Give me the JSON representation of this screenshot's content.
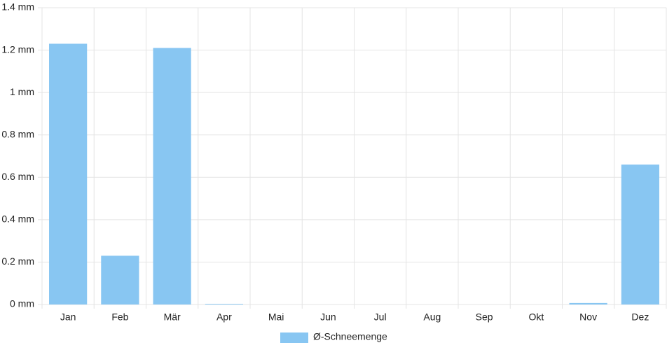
{
  "chart_data": {
    "type": "bar",
    "categories": [
      "Jan",
      "Feb",
      "Mär",
      "Apr",
      "Mai",
      "Jun",
      "Jul",
      "Aug",
      "Sep",
      "Okt",
      "Nov",
      "Dez"
    ],
    "series": [
      {
        "name": "Ø-Schneemenge",
        "color": "#88c6f2",
        "values": [
          1.23,
          0.23,
          1.21,
          0.003,
          0,
          0,
          0,
          0,
          0,
          0,
          0.007,
          0.66
        ]
      }
    ],
    "ylim": [
      0,
      1.4
    ],
    "yticks": [
      {
        "value": 0,
        "label": "0 mm"
      },
      {
        "value": 0.2,
        "label": "0.2 mm"
      },
      {
        "value": 0.4,
        "label": "0.4 mm"
      },
      {
        "value": 0.6,
        "label": "0.6 mm"
      },
      {
        "value": 0.8,
        "label": "0.8 mm"
      },
      {
        "value": 1,
        "label": "1 mm"
      },
      {
        "value": 1.2,
        "label": "1.2 mm"
      },
      {
        "value": 1.4,
        "label": "1.4 mm"
      }
    ],
    "grid": true,
    "legend": "bottom"
  }
}
